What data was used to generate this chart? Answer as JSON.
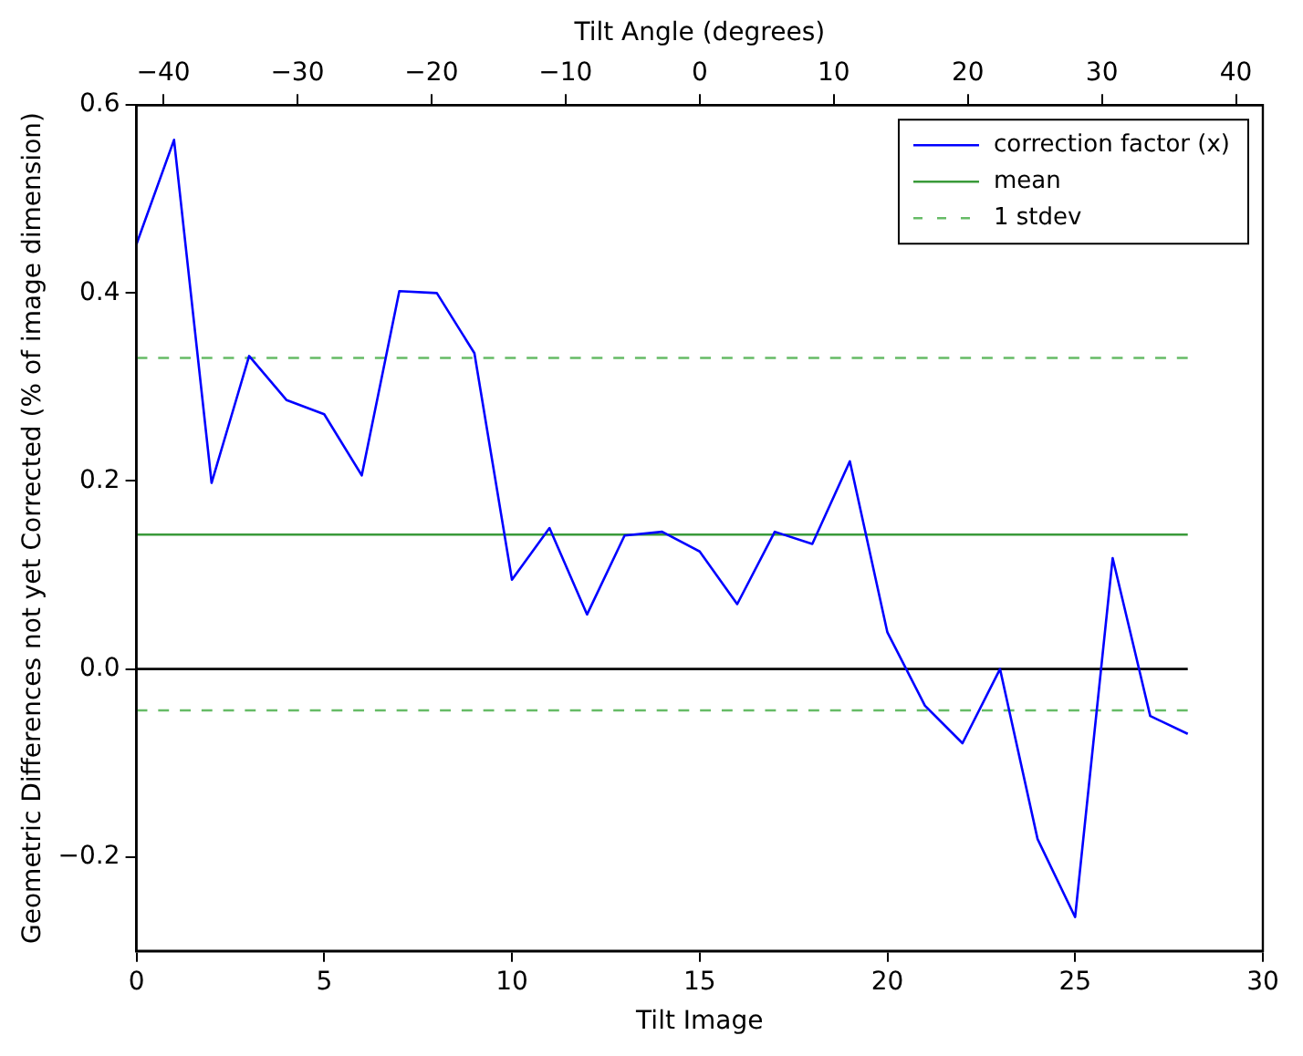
{
  "chart_data": {
    "type": "line",
    "xlabel": "Tilt Image",
    "ylabel": "Geometric Differences not yet Corrected (% of image dimension)",
    "x2label": "Tilt Angle (degrees)",
    "xlim": [
      0,
      30
    ],
    "xticks": [
      0,
      5,
      10,
      15,
      20,
      25,
      30
    ],
    "ylim": [
      -0.3,
      0.6
    ],
    "yticks": [
      {
        "value": -0.2,
        "label": "−0.2"
      },
      {
        "value": 0,
        "label": "0.0"
      },
      {
        "value": 0.2,
        "label": "0.2"
      },
      {
        "value": 0.4,
        "label": "0.4"
      },
      {
        "value": 0.6,
        "label": "0.6"
      }
    ],
    "x2lim": [
      -42,
      42
    ],
    "x2ticks": [
      -40,
      -30,
      -20,
      -10,
      0,
      10,
      20,
      30,
      40
    ],
    "grid": false,
    "legend": "top right",
    "marker": "none",
    "series": [
      {
        "name": "correction factor (x)",
        "color": "#0000ff",
        "line_style": "solid",
        "x": [
          0,
          1,
          2,
          3,
          4,
          5,
          6,
          7,
          8,
          9,
          10,
          11,
          12,
          13,
          14,
          15,
          16,
          17,
          18,
          19,
          20,
          21,
          22,
          23,
          24,
          25,
          26,
          27,
          28
        ],
        "values": [
          0.452,
          0.563,
          0.198,
          0.333,
          0.286,
          0.271,
          0.206,
          0.402,
          0.4,
          0.336,
          0.095,
          0.15,
          0.058,
          0.142,
          0.146,
          0.125,
          0.069,
          0.146,
          0.133,
          0.221,
          0.039,
          -0.039,
          -0.079,
          0.0,
          -0.181,
          -0.264,
          0.118,
          -0.05,
          -0.069
        ]
      },
      {
        "name": "mean",
        "color": "#3a9a3a",
        "line_style": "solid",
        "x": [
          0,
          28
        ],
        "values": [
          0.143,
          0.143
        ]
      },
      {
        "name": "1 stdev",
        "color": "#66bb66",
        "line_style": "dashed",
        "x": [
          0,
          28
        ],
        "values": [
          0.331,
          0.331
        ]
      },
      {
        "color": "#66bb66",
        "line_style": "dashed",
        "x": [
          0,
          28
        ],
        "values": [
          -0.044,
          -0.044
        ]
      },
      {
        "color": "#000000",
        "line_style": "solid",
        "x": [
          0,
          28
        ],
        "values": [
          0.0,
          0.0
        ]
      }
    ]
  }
}
